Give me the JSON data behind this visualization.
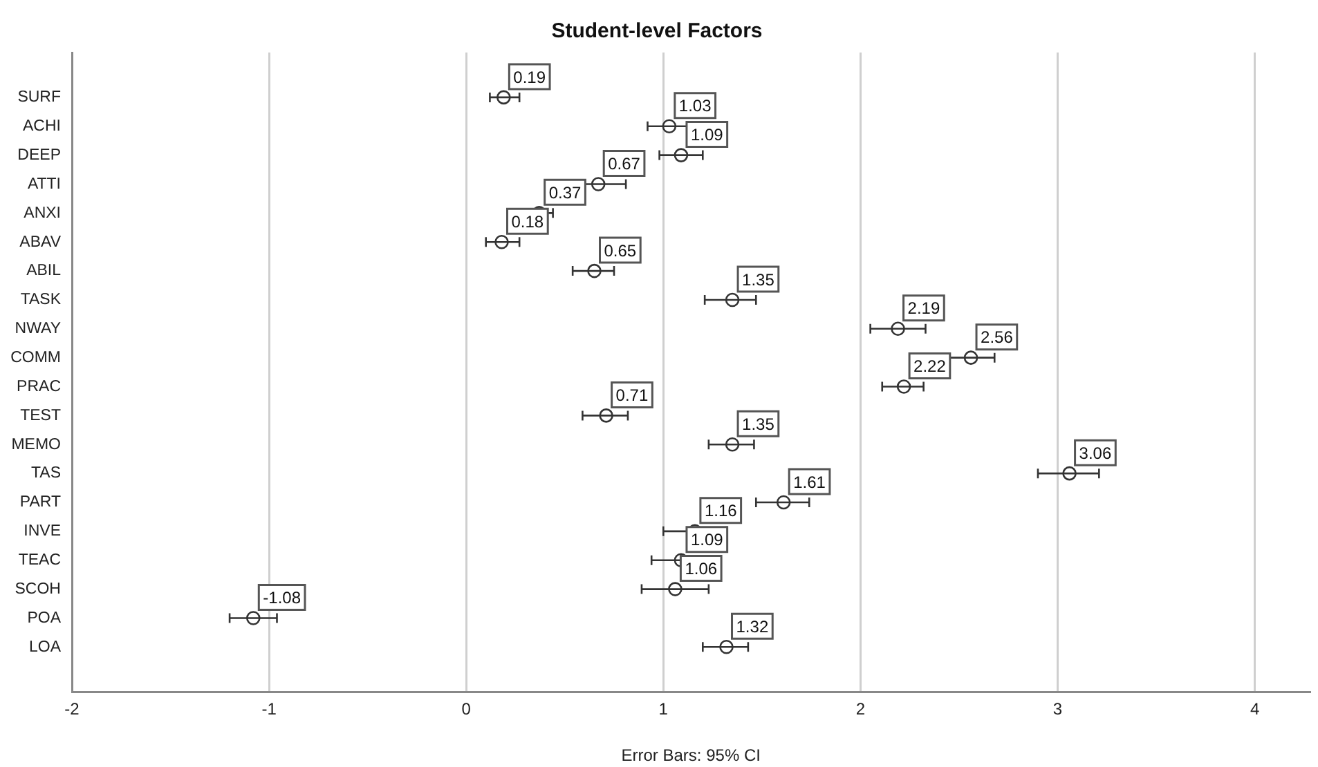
{
  "chart_data": {
    "type": "scatter",
    "orientation": "horizontal",
    "title": "Student-level Factors",
    "categories": [
      "SURF",
      "ACHI",
      "DEEP",
      "ATTI",
      "ANXI",
      "ABAV",
      "ABIL",
      "TASK",
      "NWAY",
      "COMM",
      "PRAC",
      "TEST",
      "MEMO",
      "TAS",
      "PART",
      "INVE",
      "TEAC",
      "SCOH",
      "POA",
      "LOA"
    ],
    "values": [
      0.19,
      1.03,
      1.09,
      0.67,
      0.37,
      0.18,
      0.65,
      1.35,
      2.19,
      2.56,
      2.22,
      0.71,
      1.35,
      3.06,
      1.61,
      1.16,
      1.09,
      1.06,
      -1.08,
      1.32
    ],
    "errors": [
      [
        0.12,
        0.27
      ],
      [
        0.92,
        1.13
      ],
      [
        0.98,
        1.2
      ],
      [
        0.53,
        0.81
      ],
      [
        0.29,
        0.44
      ],
      [
        0.1,
        0.27
      ],
      [
        0.54,
        0.75
      ],
      [
        1.21,
        1.47
      ],
      [
        2.05,
        2.33
      ],
      [
        2.44,
        2.68
      ],
      [
        2.11,
        2.32
      ],
      [
        0.59,
        0.82
      ],
      [
        1.23,
        1.46
      ],
      [
        2.9,
        3.21
      ],
      [
        1.47,
        1.74
      ],
      [
        1.0,
        1.32
      ],
      [
        0.94,
        1.23
      ],
      [
        0.89,
        1.23
      ],
      [
        -1.2,
        -0.96
      ],
      [
        1.2,
        1.43
      ]
    ],
    "color": "#333333",
    "marker": "circle",
    "data_labels": true,
    "xlim": [
      -2,
      4.28
    ],
    "xticks": [
      -2,
      -1,
      0,
      1,
      2,
      3,
      4
    ],
    "grid": "x",
    "annotations": [
      "Error Bars: 95% CI"
    ]
  }
}
